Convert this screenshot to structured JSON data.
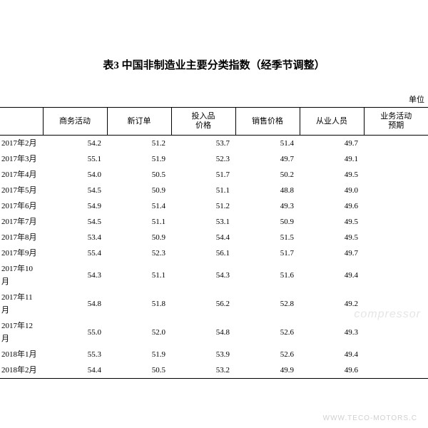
{
  "title": "表3 中国非制造业主要分类指数（经季节调整）",
  "unit_label": "单位",
  "watermark": "compressor",
  "footer_url": "WWW.TECO-MOTORS.C",
  "table": {
    "columns": [
      "",
      "商务活动",
      "新订单",
      "投入品\n价格",
      "销售价格",
      "从业人员",
      "业务活动\n预期"
    ],
    "rows": [
      [
        "2017年2月",
        "54.2",
        "51.2",
        "53.7",
        "51.4",
        "49.7",
        ""
      ],
      [
        "2017年3月",
        "55.1",
        "51.9",
        "52.3",
        "49.7",
        "49.1",
        ""
      ],
      [
        "2017年4月",
        "54.0",
        "50.5",
        "51.7",
        "50.2",
        "49.5",
        ""
      ],
      [
        "2017年5月",
        "54.5",
        "50.9",
        "51.1",
        "48.8",
        "49.0",
        ""
      ],
      [
        "2017年6月",
        "54.9",
        "51.4",
        "51.2",
        "49.3",
        "49.6",
        ""
      ],
      [
        "2017年7月",
        "54.5",
        "51.1",
        "53.1",
        "50.9",
        "49.5",
        ""
      ],
      [
        "2017年8月",
        "53.4",
        "50.9",
        "54.4",
        "51.5",
        "49.5",
        ""
      ],
      [
        "2017年9月",
        "55.4",
        "52.3",
        "56.1",
        "51.7",
        "49.7",
        ""
      ],
      [
        "2017年10月",
        "54.3",
        "51.1",
        "54.3",
        "51.6",
        "49.4",
        ""
      ],
      [
        "2017年11月",
        "54.8",
        "51.8",
        "56.2",
        "52.8",
        "49.2",
        ""
      ],
      [
        "2017年12月",
        "55.0",
        "52.0",
        "54.8",
        "52.6",
        "49.3",
        ""
      ],
      [
        "2018年1月",
        "55.3",
        "51.9",
        "53.9",
        "52.6",
        "49.4",
        ""
      ],
      [
        "2018年2月",
        "54.4",
        "50.5",
        "53.2",
        "49.9",
        "49.6",
        ""
      ]
    ],
    "header_fontsize": 11,
    "body_fontsize": 11,
    "border_color": "#000000",
    "background_color": "#ffffff",
    "text_color": "#000000"
  }
}
